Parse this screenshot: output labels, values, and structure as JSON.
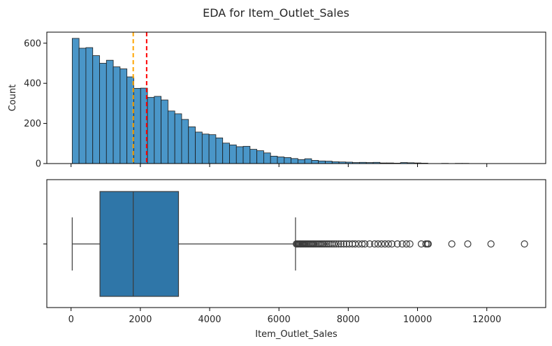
{
  "figure": {
    "title": "EDA for Item_Outlet_Sales"
  },
  "chart_data": [
    {
      "type": "histogram",
      "xlabel": "",
      "ylabel": "Count",
      "xlim": [
        -700,
        13700
      ],
      "ylim": [
        0,
        655
      ],
      "x_ticks": [
        0,
        2000,
        4000,
        6000,
        8000,
        10000,
        12000
      ],
      "y_ticks": [
        0,
        200,
        400,
        600
      ],
      "bin_edges_start": 33.29,
      "bin_width": 197.4,
      "counts": [
        624,
        575,
        578,
        538,
        500,
        515,
        482,
        472,
        432,
        375,
        376,
        330,
        335,
        317,
        262,
        248,
        220,
        183,
        157,
        147,
        144,
        128,
        102,
        93,
        84,
        86,
        71,
        64,
        53,
        37,
        33,
        30,
        25,
        20,
        24,
        16,
        13,
        12,
        9,
        8,
        7,
        5,
        6,
        5,
        6,
        3,
        3,
        2,
        5,
        4,
        3,
        2,
        0,
        0,
        1,
        0,
        1,
        1,
        0,
        0,
        0,
        0,
        0,
        0,
        0,
        0
      ],
      "bar_color": "#4a96c8",
      "median_line": {
        "value": 1794.33,
        "color": "#ffa500",
        "style": "dashed"
      },
      "mean_line": {
        "value": 2181.29,
        "color": "#ff0000",
        "style": "dashed"
      }
    },
    {
      "type": "boxplot",
      "xlabel": "Item_Outlet_Sales",
      "xlim": [
        -700,
        13700
      ],
      "x_ticks": [
        0,
        2000,
        4000,
        6000,
        8000,
        10000,
        12000
      ],
      "whisker_low": 33.29,
      "q1": 834.25,
      "median": 1794.33,
      "q3": 3101.3,
      "whisker_high": 6478.23,
      "box_color": "#2f76a8",
      "outliers": [
        6503,
        6530,
        6555,
        6580,
        6605,
        6630,
        6660,
        6690,
        6720,
        6750,
        6780,
        6810,
        6845,
        6880,
        6915,
        6950,
        6985,
        7020,
        7060,
        7100,
        7140,
        7180,
        7225,
        7270,
        7320,
        7370,
        7420,
        7470,
        7530,
        7590,
        7650,
        7720,
        7790,
        7870,
        7950,
        8030,
        8120,
        8200,
        8300,
        8400,
        8480,
        8620,
        8760,
        8860,
        8960,
        9060,
        9160,
        9260,
        9420,
        9560,
        9680,
        9780,
        10110,
        10240,
        10280,
        10310,
        10990,
        11450,
        12120,
        13087
      ]
    }
  ]
}
